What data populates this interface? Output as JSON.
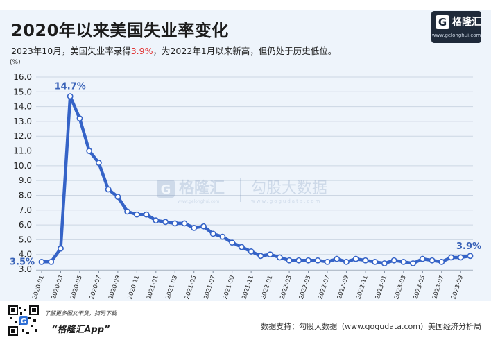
{
  "header": {
    "title": "2020年以来美国失业率变化",
    "subtitle_pre": "2023年10月，美国失业率录得",
    "subtitle_value": "3.9%",
    "subtitle_post": "，为2022年1月以来新高，但仍处于历史低位。"
  },
  "logo": {
    "mark": "G",
    "name": "格隆汇",
    "site": "www.gelonghui.com"
  },
  "watermark": {
    "brand_a": "格隆汇",
    "brand_a_site": "www.gelonghui.com",
    "brand_b": "勾股大数据",
    "brand_b_site": "www.gogudata.com"
  },
  "footer": {
    "scan_text": "了解更多图文干货，扫码下载",
    "app_name": "“格隆汇App”",
    "source": "数据支持：勾股大数据（www.gogudata.com）美国经济分析局"
  },
  "colors": {
    "line": "#3563c7",
    "marker_fill": "#ffffff",
    "annotation": "#3a63b8",
    "highlight": "#e02d2d"
  },
  "chart_data": {
    "type": "line",
    "ylabel": "(%)",
    "ylim": [
      3.0,
      16.0
    ],
    "yticks": [
      "16.0",
      "15.0",
      "14.0",
      "13.0",
      "12.0",
      "11.0",
      "10.0",
      "9.0",
      "8.0",
      "7.0",
      "6.0",
      "5.0",
      "4.0",
      "3.0"
    ],
    "grid": true,
    "x": [
      "2020-01",
      "2020-02",
      "2020-03",
      "2020-04",
      "2020-05",
      "2020-06",
      "2020-07",
      "2020-08",
      "2020-09",
      "2020-10",
      "2020-11",
      "2020-12",
      "2021-01",
      "2021-02",
      "2021-03",
      "2021-04",
      "2021-05",
      "2021-06",
      "2021-07",
      "2021-08",
      "2021-09",
      "2021-10",
      "2021-11",
      "2021-12",
      "2022-01",
      "2022-02",
      "2022-03",
      "2022-04",
      "2022-05",
      "2022-06",
      "2022-07",
      "2022-08",
      "2022-09",
      "2022-10",
      "2022-11",
      "2022-12",
      "2023-01",
      "2023-02",
      "2023-03",
      "2023-04",
      "2023-05",
      "2023-06",
      "2023-07",
      "2023-08",
      "2023-09",
      "2023-10"
    ],
    "xticks": [
      "2020-01",
      "2020-03",
      "2020-05",
      "2020-07",
      "2020-09",
      "2020-11",
      "2021-01",
      "2021-03",
      "2021-05",
      "2021-07",
      "2021-09",
      "2021-11",
      "2022-01",
      "2022-03",
      "2022-05",
      "2022-07",
      "2022-09",
      "2022-11",
      "2023-01",
      "2023-03",
      "2023-05",
      "2023-07",
      "2023-09"
    ],
    "series": [
      {
        "values": [
          3.5,
          3.5,
          4.4,
          14.7,
          13.2,
          11.0,
          10.2,
          8.4,
          7.9,
          6.9,
          6.7,
          6.7,
          6.3,
          6.2,
          6.1,
          6.1,
          5.8,
          5.9,
          5.4,
          5.2,
          4.8,
          4.5,
          4.2,
          3.9,
          4.0,
          3.8,
          3.6,
          3.6,
          3.6,
          3.6,
          3.5,
          3.7,
          3.5,
          3.7,
          3.6,
          3.5,
          3.4,
          3.6,
          3.5,
          3.4,
          3.7,
          3.6,
          3.5,
          3.8,
          3.8,
          3.9
        ]
      }
    ],
    "annotations": [
      {
        "x": "2020-01",
        "label": "3.5%"
      },
      {
        "x": "2020-04",
        "label": "14.7%"
      },
      {
        "x": "2023-10",
        "label": "3.9%"
      }
    ]
  }
}
